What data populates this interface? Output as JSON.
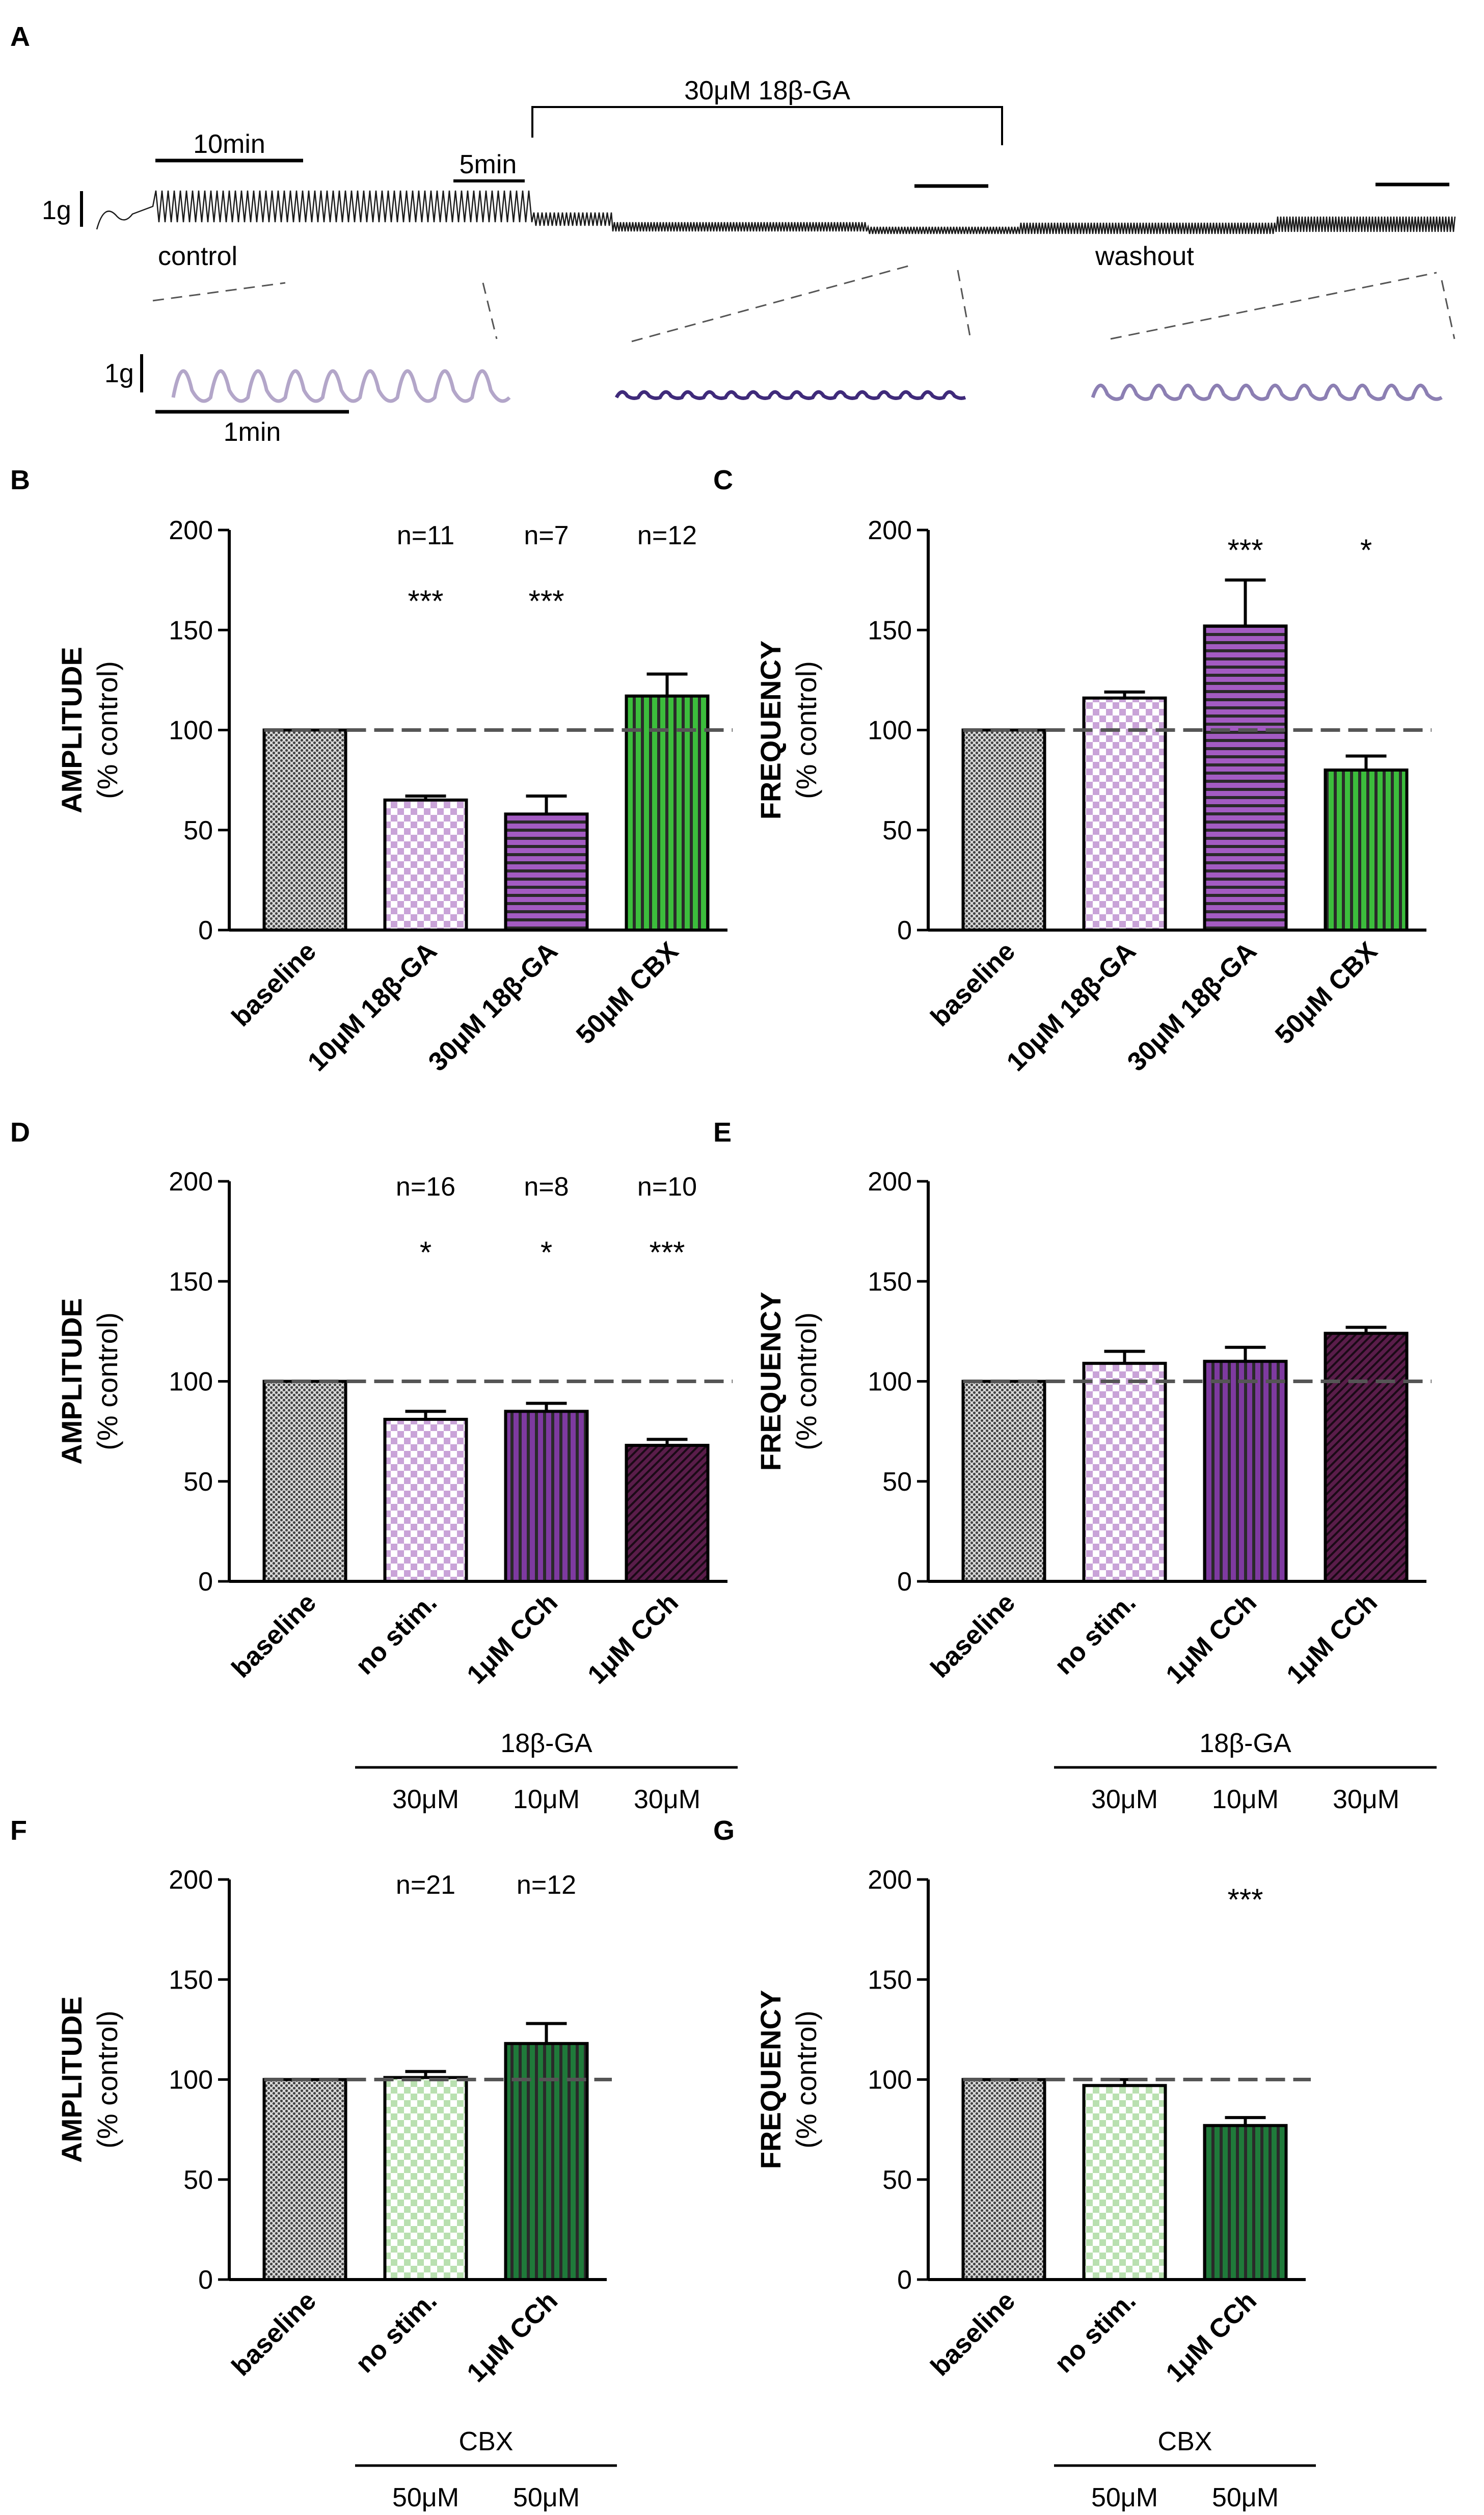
{
  "panel_a": {
    "letter": "A",
    "treatment_label": "30μM 18β-GA",
    "scale_10min": "10min",
    "scale_5min": "5min",
    "scale_1g_top": "1g",
    "control_label": "control",
    "washout_label": "washout",
    "scale_1g_bottom": "1g",
    "scale_1min": "1min",
    "trace_colors": {
      "main": "#1a1a1a",
      "control_inset": "#b3a6c9",
      "drug_inset": "#3f2a7a",
      "washout_inset": "#8c7fb3"
    }
  },
  "chart_data": [
    {
      "panel": "B",
      "type": "bar",
      "ylabel": "AMPLITUDE",
      "ylabel2": "(% control)",
      "ylim": [
        0,
        200
      ],
      "yticks": [
        "0",
        "50",
        "100",
        "150",
        "200"
      ],
      "reference_line": 100,
      "categories": [
        "baseline",
        "10μM 18β-GA",
        "30μM 18β-GA",
        "50μM CBX"
      ],
      "values": [
        100,
        65,
        58,
        117
      ],
      "errors": [
        0,
        2,
        9,
        11
      ],
      "n_labels": [
        "",
        "n=11",
        "n=7",
        "n=12"
      ],
      "significance": [
        "",
        "***",
        "***",
        ""
      ],
      "colors": [
        "#444444",
        "#c9a3d8",
        "#a35bc2",
        "#3cbd3c"
      ],
      "patterns": [
        "dots",
        "check",
        "hlines",
        "vlines"
      ],
      "group_label": "",
      "group_values": []
    },
    {
      "panel": "C",
      "type": "bar",
      "ylabel": "FREQUENCY",
      "ylabel2": "(% control)",
      "ylim": [
        0,
        200
      ],
      "yticks": [
        "0",
        "50",
        "100",
        "150",
        "200"
      ],
      "reference_line": 100,
      "categories": [
        "baseline",
        "10μM 18β-GA",
        "30μM 18β-GA",
        "50μM CBX"
      ],
      "values": [
        100,
        116,
        152,
        80
      ],
      "errors": [
        0,
        3,
        23,
        7
      ],
      "n_labels": [],
      "significance": [
        "",
        "",
        "***",
        "*"
      ],
      "colors": [
        "#444444",
        "#c9a3d8",
        "#a35bc2",
        "#3cbd3c"
      ],
      "patterns": [
        "dots",
        "check",
        "hlines",
        "vlines"
      ],
      "group_label": "",
      "group_values": []
    },
    {
      "panel": "D",
      "type": "bar",
      "ylabel": "AMPLITUDE",
      "ylabel2": "(% control)",
      "ylim": [
        0,
        200
      ],
      "yticks": [
        "0",
        "50",
        "100",
        "150",
        "200"
      ],
      "reference_line": 100,
      "categories": [
        "baseline",
        "no stim.",
        "1μM CCh",
        "1μM CCh"
      ],
      "values": [
        100,
        81,
        85,
        68
      ],
      "errors": [
        0,
        4,
        4,
        3
      ],
      "n_labels": [
        "",
        "n=16",
        "n=8",
        "n=10"
      ],
      "significance": [
        "",
        "*",
        "*",
        "***"
      ],
      "colors": [
        "#444444",
        "#c9a3d8",
        "#7e3aa0",
        "#5a1d4a"
      ],
      "patterns": [
        "dots",
        "check",
        "vlines",
        "diag"
      ],
      "group_label": "18β-GA",
      "group_values": [
        "30μM",
        "10μM",
        "30μM"
      ]
    },
    {
      "panel": "E",
      "type": "bar",
      "ylabel": "FREQUENCY",
      "ylabel2": "(% control)",
      "ylim": [
        0,
        200
      ],
      "yticks": [
        "0",
        "50",
        "100",
        "150",
        "200"
      ],
      "reference_line": 100,
      "categories": [
        "baseline",
        "no stim.",
        "1μM CCh",
        "1μM CCh"
      ],
      "values": [
        100,
        109,
        110,
        124
      ],
      "errors": [
        0,
        6,
        7,
        3
      ],
      "n_labels": [],
      "significance": [],
      "colors": [
        "#444444",
        "#c9a3d8",
        "#7e3aa0",
        "#5a1d4a"
      ],
      "patterns": [
        "dots",
        "check",
        "vlines",
        "diag"
      ],
      "group_label": "18β-GA",
      "group_values": [
        "30μM",
        "10μM",
        "30μM"
      ]
    },
    {
      "panel": "F",
      "type": "bar",
      "ylabel": "AMPLITUDE",
      "ylabel2": "(% control)",
      "ylim": [
        0,
        200
      ],
      "yticks": [
        "0",
        "50",
        "100",
        "150",
        "200"
      ],
      "reference_line": 100,
      "categories": [
        "baseline",
        "no stim.",
        "1μM CCh"
      ],
      "values": [
        100,
        101,
        118
      ],
      "errors": [
        0,
        3,
        10
      ],
      "n_labels": [
        "",
        "n=21",
        "n=12"
      ],
      "significance": [],
      "colors": [
        "#444444",
        "#b9e0b0",
        "#1f7a3a"
      ],
      "patterns": [
        "dots",
        "check",
        "vlines"
      ],
      "group_label": "CBX",
      "group_values": [
        "50μM",
        "50μM"
      ]
    },
    {
      "panel": "G",
      "type": "bar",
      "ylabel": "FREQUENCY",
      "ylabel2": "(% control)",
      "ylim": [
        0,
        200
      ],
      "yticks": [
        "0",
        "50",
        "100",
        "150",
        "200"
      ],
      "reference_line": 100,
      "categories": [
        "baseline",
        "no stim.",
        "1μM CCh"
      ],
      "values": [
        100,
        97,
        77
      ],
      "errors": [
        0,
        3,
        4
      ],
      "n_labels": [],
      "significance": [
        "",
        "",
        "***"
      ],
      "colors": [
        "#444444",
        "#b9e0b0",
        "#1f7a3a"
      ],
      "patterns": [
        "dots",
        "check",
        "vlines"
      ],
      "group_label": "CBX",
      "group_values": [
        "50μM",
        "50μM"
      ]
    }
  ]
}
